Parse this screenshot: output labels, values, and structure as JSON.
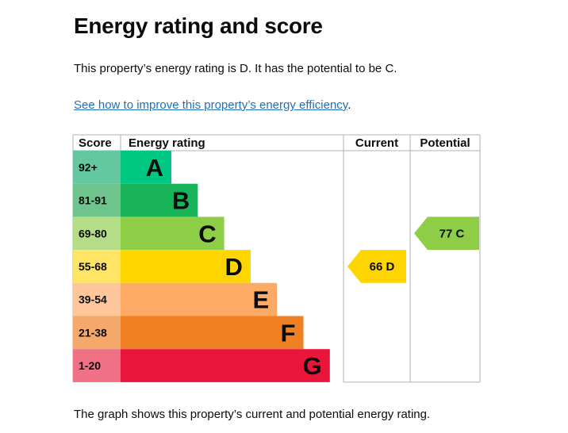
{
  "page": {
    "title": "Energy rating and score",
    "summary_prefix": "This property’s energy rating is ",
    "summary_current": "D",
    "summary_middle": ". It has the potential to be ",
    "summary_potential": "C",
    "summary_suffix": ".",
    "link_text": "See how to improve this property’s energy efficiency",
    "link_suffix": ".",
    "caption": "The graph shows this property’s current and potential energy rating."
  },
  "chart_data": {
    "type": "bar",
    "headers": {
      "score": "Score",
      "rating": "Energy rating",
      "current": "Current",
      "potential": "Potential"
    },
    "bands": [
      {
        "letter": "A",
        "range": "92+",
        "color": "#00c781",
        "score_color": "#64c7a0"
      },
      {
        "letter": "B",
        "range": "81-91",
        "color": "#19b459",
        "score_color": "#6dc48d"
      },
      {
        "letter": "C",
        "range": "69-80",
        "color": "#8dce46",
        "score_color": "#b5dd88"
      },
      {
        "letter": "D",
        "range": "55-68",
        "color": "#ffd500",
        "score_color": "#ffe466"
      },
      {
        "letter": "E",
        "range": "39-54",
        "color": "#fcaa65",
        "score_color": "#fdc79b"
      },
      {
        "letter": "F",
        "range": "21-38",
        "color": "#ef8023",
        "score_color": "#f4a86a"
      },
      {
        "letter": "G",
        "range": "1-20",
        "color": "#e9153b",
        "score_color": "#f07085"
      }
    ],
    "current": {
      "score": 66,
      "letter": "D",
      "label": "66  D",
      "color": "#ffd500"
    },
    "potential": {
      "score": 77,
      "letter": "C",
      "label": "77  C",
      "color": "#8dce46"
    }
  }
}
